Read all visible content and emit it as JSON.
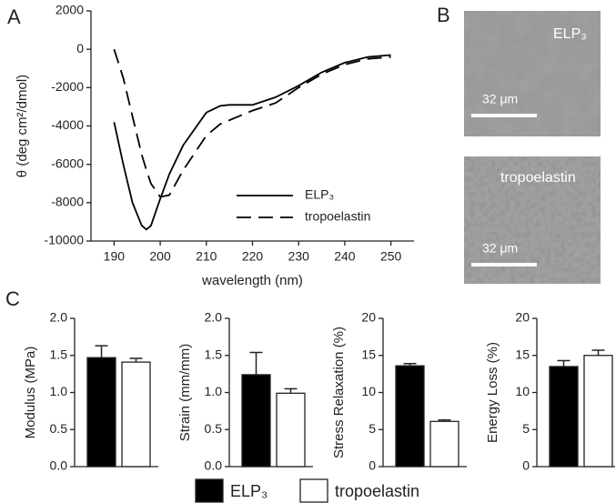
{
  "panel_labels": [
    "A",
    "B",
    "C"
  ],
  "micrographs": [
    {
      "label": "ELP₃",
      "scale_bar": "32 μm"
    },
    {
      "label": "tropoelastin",
      "scale_bar": "32 μm"
    }
  ],
  "legend": [
    {
      "name": "ELP₃",
      "color": "#000000"
    },
    {
      "name": "tropoelastin",
      "color": "#ffffff"
    }
  ],
  "chart_data": [
    {
      "type": "line",
      "x_label": "wavelength (nm)",
      "y_label": "θ (deg cm²/dmol)",
      "x": [
        190,
        192,
        194,
        196,
        197,
        198,
        200,
        202,
        205,
        210,
        213,
        215,
        220,
        225,
        230,
        235,
        240,
        245,
        250
      ],
      "series": [
        {
          "name": "ELP₃",
          "color": "#000000",
          "dash": "solid",
          "values": [
            -3800,
            -6000,
            -8000,
            -9200,
            -9400,
            -9200,
            -7800,
            -6500,
            -5000,
            -3300,
            -2950,
            -2900,
            -2900,
            -2500,
            -1900,
            -1200,
            -700,
            -400,
            -300
          ]
        },
        {
          "name": "tropoelastin",
          "color": "#000000",
          "dash": "dashed",
          "values": [
            0,
            -1500,
            -3500,
            -5500,
            -6300,
            -7000,
            -7700,
            -7600,
            -6300,
            -4500,
            -3900,
            -3700,
            -3200,
            -2800,
            -2000,
            -1300,
            -800,
            -500,
            -400
          ]
        }
      ],
      "xlim": [
        185,
        255
      ],
      "xticks": [
        190,
        200,
        210,
        220,
        230,
        240,
        250
      ],
      "ylim": [
        -10000,
        2000
      ],
      "yticks": [
        -10000,
        -8000,
        -6000,
        -4000,
        -2000,
        0,
        2000
      ],
      "legend_position": "lower right"
    },
    {
      "type": "bar",
      "y_label": "Modulus (MPa)",
      "values": [
        1.47,
        1.41
      ],
      "errors": [
        0.16,
        0.05
      ],
      "colors": [
        "#000000",
        "#ffffff"
      ],
      "ylim": [
        0,
        2
      ],
      "yticks": [
        {
          "value": 0,
          "label": "0.0"
        },
        {
          "value": 0.5,
          "label": "0.5"
        },
        {
          "value": 1,
          "label": "1.0"
        },
        {
          "value": 1.5,
          "label": "1.5"
        },
        {
          "value": 2,
          "label": "2.0"
        }
      ]
    },
    {
      "type": "bar",
      "y_label": "Strain (mm/mm)",
      "values": [
        1.24,
        0.99
      ],
      "errors": [
        0.3,
        0.06
      ],
      "colors": [
        "#000000",
        "#ffffff"
      ],
      "ylim": [
        0,
        2
      ],
      "yticks": [
        {
          "value": 0,
          "label": "0.0"
        },
        {
          "value": 0.5,
          "label": "0.5"
        },
        {
          "value": 1,
          "label": "1.0"
        },
        {
          "value": 1.5,
          "label": "1.5"
        },
        {
          "value": 2,
          "label": "2.0"
        }
      ]
    },
    {
      "type": "bar",
      "y_label": "Stress Relaxation (%)",
      "values": [
        13.6,
        6.1
      ],
      "errors": [
        0.3,
        0.2
      ],
      "colors": [
        "#000000",
        "#ffffff"
      ],
      "ylim": [
        0,
        20
      ],
      "yticks": [
        0,
        5,
        10,
        15,
        20
      ]
    },
    {
      "type": "bar",
      "y_label": "Energy Loss (%)",
      "values": [
        13.5,
        15.0
      ],
      "errors": [
        0.8,
        0.7
      ],
      "colors": [
        "#000000",
        "#ffffff"
      ],
      "ylim": [
        0,
        20
      ],
      "yticks": [
        0,
        5,
        10,
        15,
        20
      ]
    }
  ]
}
